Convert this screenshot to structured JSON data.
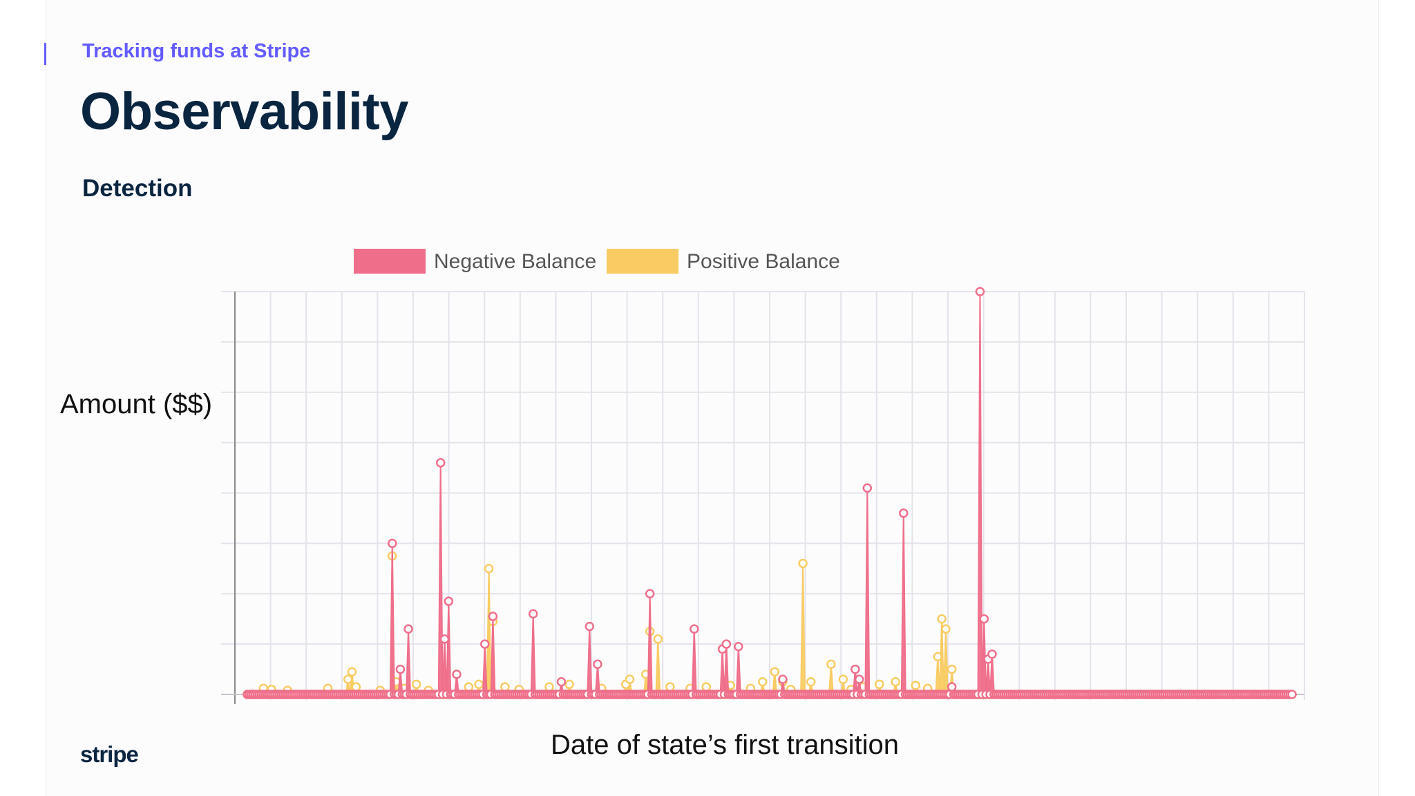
{
  "slide": {
    "eyebrow": "Tracking funds at Stripe",
    "title": "Observability",
    "subtitle": "Detection",
    "logo": "stripe"
  },
  "colors": {
    "accent": "#635bff",
    "title": "#0a2540",
    "negative": "#ef6f8b",
    "positive": "#f8cc63"
  },
  "chart_data": {
    "type": "line",
    "fill": true,
    "ylabel": "Amount ($$)",
    "xlabel": "Date of state’s first transition",
    "legend_position": "top",
    "grid": true,
    "ylim": [
      0,
      8
    ],
    "series": [
      {
        "name": "Negative Balance",
        "color": "#ef6f8b",
        "values": [
          0,
          0,
          0,
          0,
          0,
          0,
          0,
          0,
          0,
          0,
          0,
          0,
          0,
          0,
          0,
          0,
          0,
          0,
          0,
          0,
          0,
          0,
          0,
          0,
          0,
          0,
          0,
          0,
          0,
          0,
          0,
          0,
          0,
          0,
          0,
          0,
          0,
          0,
          0,
          0,
          0,
          0,
          0,
          0,
          0,
          0,
          0,
          0,
          0,
          0,
          0,
          0,
          3.0,
          0,
          0,
          0,
          0.5,
          0,
          0,
          0.15,
          0,
          1.3,
          0,
          0,
          0,
          0,
          0,
          0,
          0,
          0,
          0,
          4.6,
          1.1,
          1.85,
          0,
          0.4,
          0,
          0,
          0,
          0,
          0,
          0,
          0,
          0,
          0,
          0,
          0,
          0,
          0,
          0,
          0,
          0,
          0,
          0,
          0,
          0,
          0,
          0,
          0,
          0,
          0,
          0,
          0,
          0,
          0,
          0,
          0,
          0,
          0,
          0,
          0,
          0,
          0,
          0,
          0,
          0,
          0,
          0,
          0,
          0,
          0.1,
          0,
          0,
          0,
          0,
          0,
          1.35,
          0,
          0,
          0.6,
          0,
          0,
          0,
          0,
          0,
          0,
          0,
          0,
          0,
          0,
          0,
          0,
          0,
          0,
          0,
          0,
          0,
          0,
          0,
          0,
          0,
          0,
          0,
          0,
          0,
          0,
          0,
          0,
          0,
          0,
          0,
          0,
          0,
          0,
          0,
          0,
          0,
          0,
          0,
          0,
          0,
          0,
          0,
          0,
          0,
          0,
          0,
          0,
          0,
          0,
          0,
          0,
          0,
          0,
          0,
          0,
          0,
          0,
          0,
          0,
          0,
          0,
          0,
          0,
          0,
          0,
          0,
          0,
          0,
          0,
          0,
          0,
          0,
          0,
          0,
          0,
          0,
          0,
          0,
          0,
          0,
          0,
          0,
          0,
          0,
          0,
          0,
          0,
          0,
          0,
          0,
          0,
          0,
          0,
          0,
          0,
          0,
          0,
          0,
          0,
          0,
          0,
          0,
          0,
          0,
          0,
          0,
          0,
          0,
          0,
          0,
          0,
          0,
          0,
          0,
          0,
          0,
          0,
          0,
          0,
          0,
          0,
          0,
          0,
          0,
          0,
          0,
          0,
          0,
          0,
          0,
          0,
          0,
          0,
          0,
          0,
          0,
          0,
          0,
          0,
          0,
          0,
          0,
          0,
          0,
          0,
          0,
          0,
          0,
          0,
          0,
          0,
          0,
          0,
          0,
          0,
          0,
          0,
          0,
          0,
          0,
          0,
          0,
          0,
          0,
          0,
          0,
          0,
          0,
          0,
          0,
          0,
          0,
          0,
          0,
          0,
          0,
          0,
          0,
          0,
          0,
          0,
          0,
          0,
          0,
          0,
          0,
          0,
          0,
          0,
          0,
          0,
          0,
          0,
          0,
          0,
          0,
          0,
          0,
          0,
          0,
          0,
          0,
          0,
          0,
          0,
          0,
          0,
          0,
          0,
          0,
          0,
          0,
          0,
          0,
          0,
          0,
          0,
          0,
          0,
          0,
          0,
          0,
          0,
          0,
          0,
          0,
          0,
          0,
          0,
          0,
          0,
          0,
          0,
          0,
          0,
          0,
          0,
          0,
          0,
          0,
          0,
          0,
          0,
          0,
          0,
          0,
          0,
          0,
          0,
          0,
          0,
          0,
          0,
          0,
          0,
          0,
          0,
          0,
          0,
          0,
          0,
          0,
          0,
          0,
          0,
          0,
          0,
          0,
          0,
          0,
          0,
          0,
          0,
          0,
          0,
          0,
          0,
          0,
          0,
          0,
          0,
          0,
          0,
          0,
          0,
          0,
          0,
          0,
          0,
          0,
          0,
          0,
          0,
          0,
          0,
          0,
          0,
          0,
          0,
          0,
          0,
          0,
          0,
          0,
          0,
          0,
          0,
          0,
          0,
          0,
          0,
          0,
          0,
          0,
          0,
          0,
          0,
          0,
          0,
          0,
          0,
          0,
          0,
          0,
          0,
          0,
          0,
          0,
          0,
          0,
          0,
          0,
          0,
          0,
          0,
          0,
          0,
          0,
          0,
          0,
          0,
          0,
          0,
          0,
          0,
          0,
          0,
          0,
          0,
          0,
          0,
          0,
          0,
          0,
          0,
          0,
          0,
          0,
          0,
          0,
          0,
          0,
          0,
          0,
          0,
          0,
          0,
          0,
          0,
          0,
          0,
          0,
          0,
          0,
          0,
          0,
          0,
          0,
          0,
          0,
          0,
          0,
          0,
          0,
          0,
          0,
          0,
          0,
          0
        ]
      },
      {
        "name": "Positive Balance",
        "color": "#f8cc63",
        "values": []
      }
    ]
  }
}
